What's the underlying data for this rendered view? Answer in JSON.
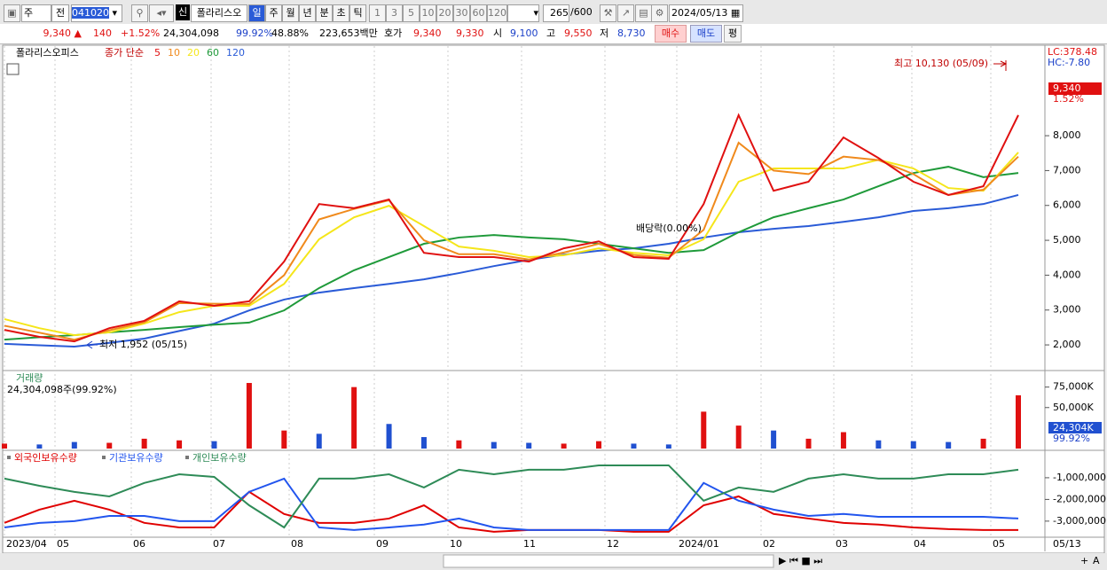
{
  "toolbar": {
    "period": "주",
    "prev": "전",
    "code": "041020",
    "new": "신",
    "name": "폴라리스오",
    "units": [
      "일",
      "주",
      "월",
      "년",
      "분",
      "초",
      "틱"
    ],
    "counts": [
      "1",
      "3",
      "5",
      "10",
      "20",
      "30",
      "60",
      "120"
    ],
    "shown": "265",
    "total": "/600",
    "date": "2024/05/13"
  },
  "quote_bar": {
    "price": "9,340 ▲",
    "change": "140",
    "change_pct": "+1.52%",
    "volume": "24,304,098",
    "volume_pct": "99.92%",
    "turnover": "48.88%",
    "amount": "223,653백만",
    "ask_label": "호가",
    "ask": "9,340",
    "bid": "9,330",
    "open_label": "시",
    "open": "9,100",
    "high_label": "고",
    "high": "9,550",
    "low_label": "저",
    "low": "8,730",
    "buy": "매수",
    "sell": "매도",
    "avg": "평"
  },
  "x_axis": {
    "labels": [
      "2023/04",
      "05",
      "06",
      "07",
      "08",
      "09",
      "10",
      "11",
      "12",
      "2024/01",
      "02",
      "03",
      "04",
      "05"
    ],
    "last": "05/13"
  },
  "zoom_labels": [
    "+",
    "A"
  ],
  "chart_data": [
    {
      "type": "line",
      "title": "폴라리스오피스",
      "legend_title": "종가 단순",
      "ylim": [
        1290,
        10570
      ],
      "yticks": [
        {
          "value": 2000,
          "label": "2,000"
        },
        {
          "value": 3000,
          "label": "3,000"
        },
        {
          "value": 4000,
          "label": "4,000"
        },
        {
          "value": 5000,
          "label": "5,000"
        },
        {
          "value": 6000,
          "label": "6,000"
        },
        {
          "value": 7000,
          "label": "7,000"
        },
        {
          "value": 8000,
          "label": "8,000"
        }
      ],
      "scale_notes": [
        "LC:378.48",
        "HC:-7.80",
        "9,340",
        "1.52%"
      ],
      "annotations": [
        "최고 10,130 (05/09)",
        "최저 1,952 (05/15)",
        "배당락(0.00%)"
      ],
      "series": [
        {
          "name": "120",
          "color": "#2a5bd7",
          "values": [
            2030,
            1990,
            1950,
            2060,
            2180,
            2400,
            2610,
            2990,
            3300,
            3500,
            3630,
            3750,
            3880,
            4060,
            4260,
            4440,
            4590,
            4700,
            4770,
            4900,
            5080,
            5230,
            5330,
            5410,
            5530,
            5660,
            5840,
            5920,
            6040,
            6300
          ]
        },
        {
          "name": "60",
          "color": "#1f9a3a",
          "values": [
            2150,
            2220,
            2280,
            2360,
            2430,
            2510,
            2580,
            2640,
            2990,
            3630,
            4140,
            4520,
            4900,
            5080,
            5150,
            5080,
            5030,
            4900,
            4770,
            4640,
            4720,
            5230,
            5660,
            5920,
            6170,
            6550,
            6930,
            7110,
            6810,
            6930
          ]
        },
        {
          "name": "20",
          "color": "#f5e61a",
          "values": [
            2740,
            2480,
            2280,
            2360,
            2610,
            2940,
            3120,
            3120,
            3750,
            5030,
            5660,
            5990,
            5410,
            4820,
            4700,
            4520,
            4570,
            4770,
            4640,
            4570,
            5030,
            6680,
            7060,
            7060,
            7060,
            7310,
            7060,
            6500,
            6420,
            7520
          ]
        },
        {
          "name": "10",
          "color": "#f08a1c",
          "values": [
            2550,
            2350,
            2150,
            2420,
            2650,
            3200,
            3180,
            3170,
            4000,
            5600,
            5900,
            6150,
            5000,
            4600,
            4600,
            4450,
            4650,
            4900,
            4580,
            4500,
            5300,
            7800,
            7000,
            6900,
            7400,
            7300,
            6900,
            6300,
            6450,
            7400
          ]
        },
        {
          "name": "5",
          "color": "#e01010",
          "values": [
            2430,
            2230,
            2100,
            2480,
            2690,
            3250,
            3120,
            3250,
            4390,
            6040,
            5920,
            6170,
            4640,
            4520,
            4520,
            4390,
            4770,
            4970,
            4520,
            4470,
            6040,
            8590,
            6420,
            6680,
            7950,
            7360,
            6680,
            6300,
            6550,
            8590
          ]
        }
      ]
    },
    {
      "type": "bar",
      "title": "거래량",
      "subtitle": "24,304,098주(99.92%)",
      "ylim": [
        0,
        93000
      ],
      "yticks": [
        {
          "value": 50000,
          "label": "50,000K"
        },
        {
          "value": 75000,
          "label": "75,000K"
        }
      ],
      "scale_notes": [
        "24,304K",
        "99.92%"
      ],
      "series": [
        {
          "name": "거래량",
          "values": [
            6000,
            5000,
            8000,
            7000,
            12000,
            10000,
            9000,
            80000,
            22000,
            18000,
            75000,
            30000,
            14000,
            10000,
            8000,
            7000,
            6000,
            9000,
            6000,
            5000,
            45000,
            28000,
            22000,
            12000,
            20000,
            10000,
            9000,
            8000,
            12000,
            65000
          ],
          "colors": [
            "#e01010",
            "#2050d0",
            "#2050d0",
            "#e01010",
            "#e01010",
            "#e01010",
            "#2050d0",
            "#e01010",
            "#e01010",
            "#2050d0",
            "#e01010",
            "#2050d0",
            "#2050d0",
            "#e01010",
            "#2050d0",
            "#2050d0",
            "#e01010",
            "#e01010",
            "#2050d0",
            "#2050d0",
            "#e01010",
            "#e01010",
            "#2050d0",
            "#e01010",
            "#e01010",
            "#2050d0",
            "#2050d0",
            "#2050d0",
            "#e01010",
            "#e01010"
          ]
        }
      ]
    },
    {
      "type": "line",
      "ylim": [
        -3700000,
        100000
      ],
      "yticks": [
        {
          "value": -3000000,
          "label": "-3,000,000"
        },
        {
          "value": -2000000,
          "label": "-2,000,000"
        },
        {
          "value": -1000000,
          "label": "-1,000,000"
        }
      ],
      "series": [
        {
          "name": "외국인보유수량",
          "color": "#e00000",
          "values": [
            -3080000,
            -2470000,
            -2060000,
            -2470000,
            -3080000,
            -3290000,
            -3290000,
            -1650000,
            -2670000,
            -3080000,
            -3080000,
            -2880000,
            -2270000,
            -3290000,
            -3490000,
            -3410000,
            -3410000,
            -3410000,
            -3490000,
            -3490000,
            -2270000,
            -1860000,
            -2670000,
            -2880000,
            -3080000,
            -3160000,
            -3290000,
            -3370000,
            -3410000,
            -3410000
          ]
        },
        {
          "name": "기관보유수량",
          "color": "#2255ee",
          "values": [
            -3290000,
            -3080000,
            -3000000,
            -2760000,
            -2760000,
            -3000000,
            -3000000,
            -1650000,
            -1040000,
            -3290000,
            -3410000,
            -3290000,
            -3160000,
            -2880000,
            -3290000,
            -3410000,
            -3410000,
            -3410000,
            -3410000,
            -3410000,
            -1240000,
            -2060000,
            -2470000,
            -2760000,
            -2670000,
            -2800000,
            -2800000,
            -2800000,
            -2800000,
            -2880000
          ]
        },
        {
          "name": "개인보유수량",
          "color": "#2e8b57",
          "values": [
            -1040000,
            -1370000,
            -1650000,
            -1860000,
            -1240000,
            -840000,
            -960000,
            -2270000,
            -3290000,
            -1040000,
            -1040000,
            -840000,
            -1450000,
            -630000,
            -840000,
            -630000,
            -630000,
            -430000,
            -430000,
            -430000,
            -2060000,
            -1450000,
            -1650000,
            -1040000,
            -840000,
            -1040000,
            -1040000,
            -840000,
            -840000,
            -630000
          ]
        }
      ]
    }
  ]
}
